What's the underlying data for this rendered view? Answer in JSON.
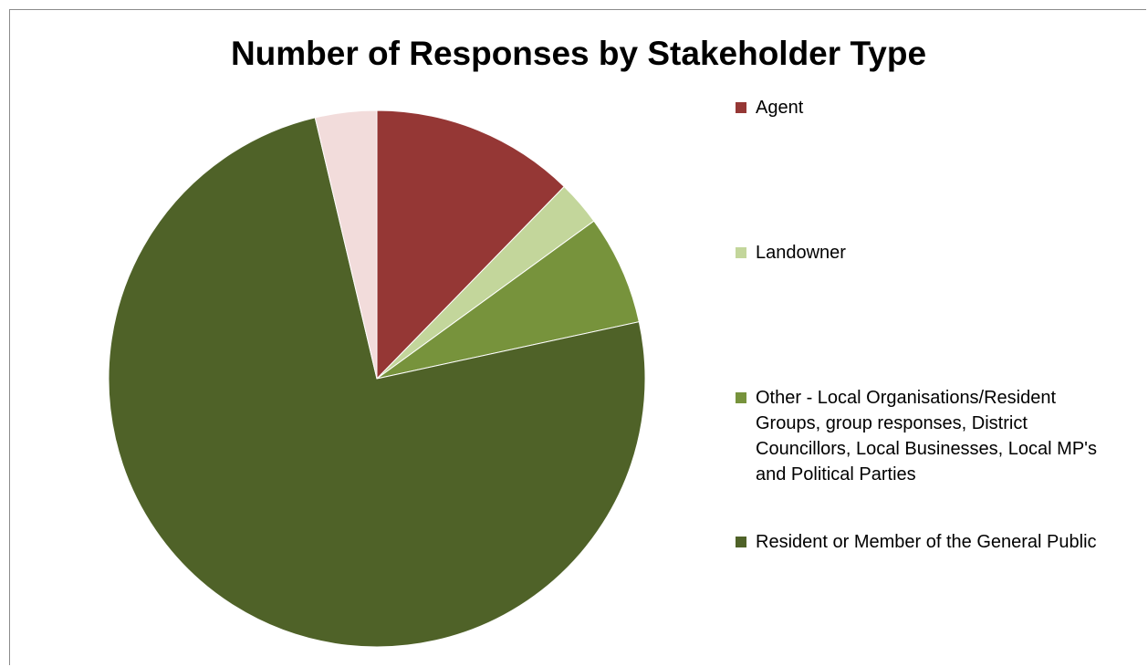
{
  "chart_data": {
    "type": "pie",
    "title": "Number of Responses by Stakeholder Type",
    "legend_position": "right",
    "series": [
      {
        "name": "Agent",
        "value": 12.3,
        "color": "#953735"
      },
      {
        "name": "Landowner",
        "value": 2.7,
        "color": "#c3d69b"
      },
      {
        "name": "Other - Local Organisations/Resident Groups, group responses, District Councillors, Local Businesses, Local MP's and Political Parties",
        "value": 6.6,
        "color": "#77933c"
      },
      {
        "name": "Resident or Member of the General Public",
        "value": 74.7,
        "color": "#4f6228"
      },
      {
        "value": 3.7,
        "color": "#f2dcdb"
      }
    ]
  }
}
